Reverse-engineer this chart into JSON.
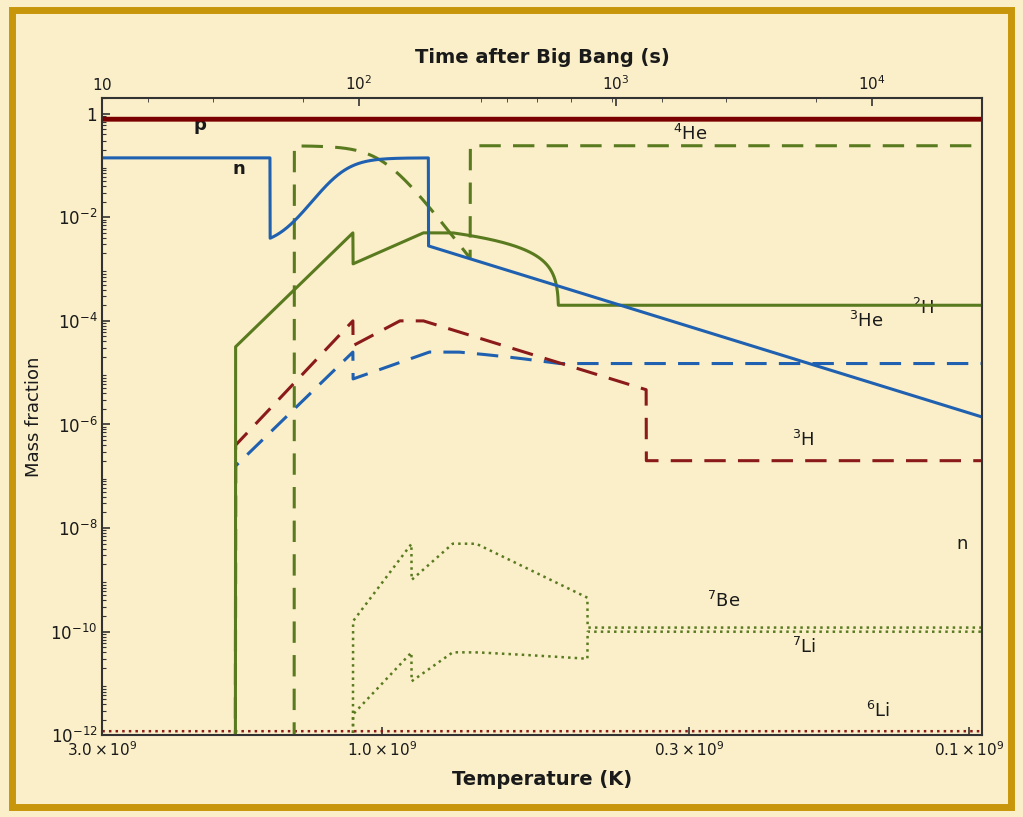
{
  "background_color": "#faefc8",
  "title_top": "Time after Big Bang (s)",
  "xlabel": "Temperature (K)",
  "ylabel": "Mass fraction",
  "border_color": "#c8960a",
  "annotation_color": "#1a1a1a",
  "color_p": "#7a0000",
  "color_n": "#2060b0",
  "color_He4": "#5a7a20",
  "color_H2": "#5a7a20",
  "color_He3": "#2060b0",
  "color_H3": "#8b1a1a",
  "color_Be7": "#5a7a20",
  "color_Li7": "#5a7a20",
  "color_Li6": "#8b1a1a"
}
